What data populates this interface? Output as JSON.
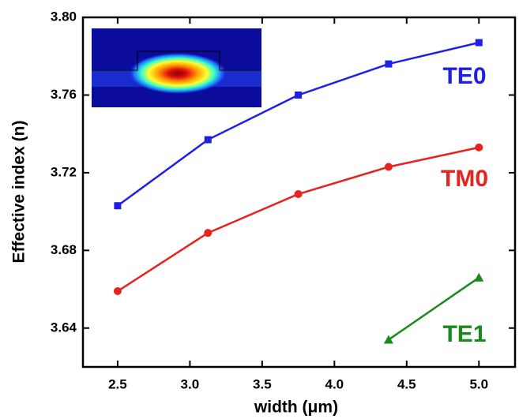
{
  "chart_data": {
    "type": "line",
    "x_label": "width (μm)",
    "y_label": "Effective index (n)",
    "xlim": [
      2.26,
      5.25
    ],
    "ylim": [
      3.62,
      3.8
    ],
    "xticks": [
      2.5,
      {
        "value": 3,
        "label": "3.0"
      },
      3.5,
      {
        "value": 4,
        "label": "4.0"
      },
      4.5,
      {
        "value": 5,
        "label": "5.0"
      }
    ],
    "yticks": [
      3.64,
      3.68,
      3.72,
      3.76,
      {
        "value": 3.8,
        "label": "3.80"
      }
    ],
    "series": [
      {
        "name": "TE0",
        "color": "#1f1fe6",
        "marker": "square",
        "x": [
          2.5,
          3.125,
          3.75,
          4.375,
          5.0
        ],
        "values": [
          3.703,
          3.737,
          3.76,
          3.776,
          3.787
        ]
      },
      {
        "name": "TM0",
        "color": "#e8221c",
        "marker": "circle",
        "x": [
          2.5,
          3.125,
          3.75,
          4.375,
          5.0
        ],
        "values": [
          3.659,
          3.689,
          3.709,
          3.723,
          3.733
        ]
      },
      {
        "name": "TE1",
        "color": "#1a8a1a",
        "marker": "triangle",
        "x": [
          4.375,
          5.0
        ],
        "values": [
          3.634,
          3.666
        ]
      }
    ]
  }
}
